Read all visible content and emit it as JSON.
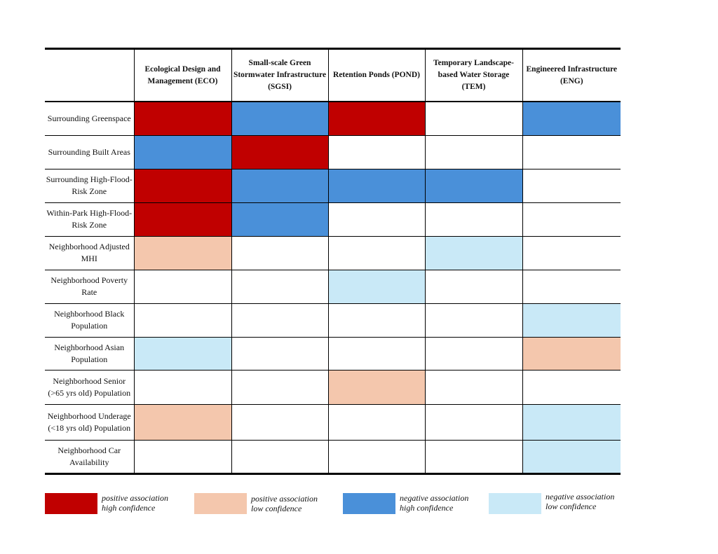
{
  "chart_data": {
    "type": "table",
    "columns": [
      "Ecological Design and Management (ECO)",
      "Small-scale Green Stormwater Infrastructure (SGSI)",
      "Retention Ponds (POND)",
      "Temporary Landscape-based Water Storage (TEM)",
      "Engineered Infrastructure (ENG)"
    ],
    "rows": [
      {
        "label": "Surrounding Greenspace",
        "cells": [
          "pos_high",
          "neg_high",
          "pos_high",
          "",
          "neg_high"
        ]
      },
      {
        "label": "Surrounding Built Areas",
        "cells": [
          "neg_high",
          "pos_high",
          "",
          "",
          ""
        ]
      },
      {
        "label": "Surrounding High-Flood-Risk Zone",
        "cells": [
          "pos_high",
          "neg_high",
          "neg_high",
          "neg_high",
          ""
        ]
      },
      {
        "label": "Within-Park High-Flood-Risk Zone",
        "cells": [
          "pos_high",
          "neg_high",
          "",
          "",
          ""
        ]
      },
      {
        "label": "Neighborhood Adjusted MHI",
        "cells": [
          "pos_low",
          "",
          "",
          "neg_low",
          ""
        ]
      },
      {
        "label": "Neighborhood Poverty Rate",
        "cells": [
          "",
          "",
          "neg_low",
          "",
          ""
        ]
      },
      {
        "label": "Neighborhood Black Population",
        "cells": [
          "",
          "",
          "",
          "",
          "neg_low"
        ]
      },
      {
        "label": "Neighborhood Asian Population",
        "cells": [
          "neg_low",
          "",
          "",
          "",
          "pos_low"
        ]
      },
      {
        "label": "Neighborhood Senior (>65 yrs old) Population",
        "cells": [
          "",
          "",
          "pos_low",
          "",
          ""
        ]
      },
      {
        "label": "Neighborhood Underage (<18 yrs old) Population",
        "cells": [
          "pos_low",
          "",
          "",
          "",
          "neg_low"
        ]
      },
      {
        "label": "Neighborhood Car Availability",
        "cells": [
          "",
          "",
          "",
          "",
          "neg_low"
        ]
      }
    ],
    "legend": [
      {
        "key": "pos_high",
        "line1": "positive association",
        "line2": "high confidence",
        "color": "#c00000"
      },
      {
        "key": "pos_low",
        "line1": "positive association",
        "line2": "low confidence",
        "color": "#f4c7ad"
      },
      {
        "key": "neg_high",
        "line1": "negative association",
        "line2": "high confidence",
        "color": "#4a90d9"
      },
      {
        "key": "neg_low",
        "line1": "negative association",
        "line2": "low confidence",
        "color": "#c9e9f7"
      }
    ]
  }
}
